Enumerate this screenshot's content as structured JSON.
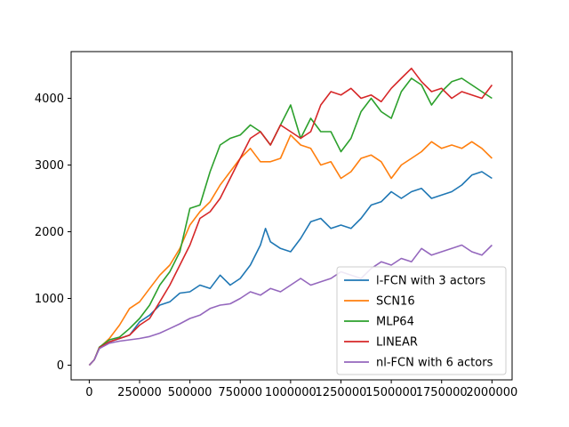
{
  "chart_data": {
    "type": "line",
    "title": "",
    "xlabel": "",
    "ylabel": "",
    "xlim": [
      -90000,
      2100000
    ],
    "ylim": [
      -220,
      4700
    ],
    "xticks": [
      0,
      250000,
      500000,
      750000,
      1000000,
      1250000,
      1500000,
      1750000,
      2000000
    ],
    "xtick_labels": [
      "0",
      "250000",
      "500000",
      "750000",
      "1000000",
      "1250000",
      "1500000",
      "1750000",
      "2000000"
    ],
    "yticks": [
      0,
      1000,
      2000,
      3000,
      4000
    ],
    "ytick_labels": [
      "0",
      "1000",
      "2000",
      "3000",
      "4000"
    ],
    "grid": false,
    "legend_position": "lower-right",
    "series": [
      {
        "name": "l-FCN with 3 actors",
        "color": "#1f77b4",
        "x": [
          0,
          25000,
          50000,
          100000,
          150000,
          200000,
          250000,
          300000,
          350000,
          400000,
          450000,
          500000,
          550000,
          600000,
          650000,
          700000,
          750000,
          800000,
          850000,
          875000,
          900000,
          950000,
          1000000,
          1050000,
          1100000,
          1150000,
          1200000,
          1250000,
          1300000,
          1350000,
          1400000,
          1450000,
          1500000,
          1550000,
          1600000,
          1650000,
          1700000,
          1750000,
          1800000,
          1850000,
          1900000,
          1950000,
          2000000
        ],
        "y": [
          0,
          80,
          250,
          350,
          400,
          450,
          650,
          750,
          900,
          950,
          1080,
          1100,
          1200,
          1150,
          1350,
          1200,
          1300,
          1500,
          1800,
          2050,
          1850,
          1750,
          1700,
          1900,
          2150,
          2200,
          2050,
          2100,
          2050,
          2200,
          2400,
          2450,
          2600,
          2500,
          2600,
          2650,
          2500,
          2550,
          2600,
          2700,
          2850,
          2900,
          2800
        ]
      },
      {
        "name": "SCN16",
        "color": "#ff7f0e",
        "x": [
          0,
          25000,
          50000,
          100000,
          150000,
          200000,
          250000,
          300000,
          350000,
          400000,
          450000,
          500000,
          550000,
          600000,
          650000,
          700000,
          750000,
          800000,
          850000,
          900000,
          950000,
          1000000,
          1050000,
          1100000,
          1150000,
          1200000,
          1250000,
          1300000,
          1350000,
          1400000,
          1450000,
          1500000,
          1550000,
          1600000,
          1650000,
          1700000,
          1750000,
          1800000,
          1850000,
          1900000,
          1950000,
          2000000
        ],
        "y": [
          0,
          80,
          260,
          400,
          600,
          850,
          950,
          1150,
          1350,
          1500,
          1750,
          2100,
          2300,
          2450,
          2700,
          2900,
          3100,
          3250,
          3050,
          3050,
          3100,
          3450,
          3300,
          3250,
          3000,
          3050,
          2800,
          2900,
          3100,
          3150,
          3050,
          2800,
          3000,
          3100,
          3200,
          3350,
          3250,
          3300,
          3250,
          3350,
          3250,
          3100
        ]
      },
      {
        "name": "MLP64",
        "color": "#2ca02c",
        "x": [
          0,
          25000,
          50000,
          100000,
          150000,
          200000,
          250000,
          300000,
          350000,
          400000,
          450000,
          500000,
          550000,
          600000,
          650000,
          700000,
          750000,
          800000,
          850000,
          900000,
          950000,
          1000000,
          1050000,
          1100000,
          1150000,
          1200000,
          1250000,
          1300000,
          1350000,
          1400000,
          1450000,
          1500000,
          1550000,
          1600000,
          1650000,
          1700000,
          1750000,
          1800000,
          1850000,
          1900000,
          1950000,
          2000000
        ],
        "y": [
          0,
          80,
          270,
          380,
          420,
          550,
          700,
          900,
          1200,
          1400,
          1700,
          2350,
          2400,
          2900,
          3300,
          3400,
          3450,
          3600,
          3500,
          3300,
          3600,
          3900,
          3400,
          3700,
          3500,
          3500,
          3200,
          3400,
          3800,
          4000,
          3800,
          3700,
          4100,
          4300,
          4200,
          3900,
          4100,
          4250,
          4300,
          4200,
          4100,
          4000
        ]
      },
      {
        "name": "LINEAR",
        "color": "#d62728",
        "x": [
          0,
          25000,
          50000,
          100000,
          150000,
          200000,
          250000,
          300000,
          350000,
          400000,
          450000,
          500000,
          550000,
          600000,
          650000,
          700000,
          750000,
          800000,
          850000,
          900000,
          950000,
          1000000,
          1050000,
          1100000,
          1150000,
          1200000,
          1250000,
          1300000,
          1350000,
          1400000,
          1450000,
          1500000,
          1550000,
          1600000,
          1650000,
          1700000,
          1750000,
          1800000,
          1850000,
          1900000,
          1950000,
          2000000
        ],
        "y": [
          0,
          80,
          260,
          350,
          400,
          450,
          600,
          700,
          950,
          1200,
          1500,
          1800,
          2200,
          2300,
          2500,
          2800,
          3100,
          3400,
          3500,
          3300,
          3600,
          3500,
          3400,
          3500,
          3900,
          4100,
          4050,
          4150,
          4000,
          4050,
          3950,
          4150,
          4300,
          4450,
          4250,
          4100,
          4150,
          4000,
          4100,
          4050,
          4000,
          4200
        ]
      },
      {
        "name": "nl-FCN with 6 actors",
        "color": "#9467bd",
        "x": [
          0,
          25000,
          50000,
          100000,
          150000,
          200000,
          250000,
          300000,
          350000,
          400000,
          450000,
          500000,
          550000,
          600000,
          650000,
          700000,
          750000,
          800000,
          850000,
          900000,
          950000,
          1000000,
          1050000,
          1100000,
          1150000,
          1200000,
          1250000,
          1300000,
          1350000,
          1400000,
          1450000,
          1500000,
          1550000,
          1600000,
          1650000,
          1700000,
          1750000,
          1800000,
          1850000,
          1900000,
          1950000,
          2000000
        ],
        "y": [
          0,
          80,
          250,
          330,
          360,
          380,
          400,
          430,
          480,
          550,
          620,
          700,
          750,
          850,
          900,
          920,
          1000,
          1100,
          1050,
          1150,
          1100,
          1200,
          1300,
          1200,
          1250,
          1300,
          1400,
          1350,
          1300,
          1450,
          1550,
          1500,
          1600,
          1550,
          1750,
          1650,
          1700,
          1750,
          1800,
          1700,
          1650,
          1800
        ]
      }
    ]
  }
}
